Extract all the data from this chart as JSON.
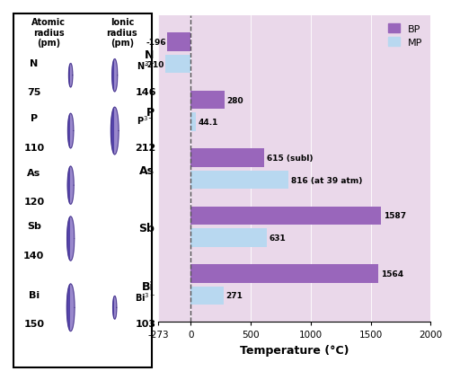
{
  "elements": [
    "N",
    "P",
    "As",
    "Sb",
    "Bi"
  ],
  "bp": [
    -196,
    280,
    615,
    1587,
    1564
  ],
  "mp": [
    -210,
    44.1,
    816,
    631,
    271
  ],
  "bp_labels": [
    "-196",
    "280",
    "615 (subl)",
    "1587",
    "1564"
  ],
  "mp_labels": [
    "-210",
    "44.1",
    "816 (at 39 atm)",
    "631",
    "271"
  ],
  "bp_color": "#9966bb",
  "mp_color": "#b8d8f0",
  "bg_color": "#ead8ea",
  "xlabel": "Temperature (°C)",
  "xlim": [
    -273,
    2000
  ],
  "xticks": [
    -273,
    0,
    500,
    1000,
    1500,
    2000
  ],
  "left_panel_bg": "#ffffff",
  "atomic_radius": [
    75,
    110,
    120,
    140,
    150
  ],
  "ionic_radii": [
    146,
    212,
    null,
    null,
    103
  ],
  "ionic_label_top": [
    "N$^{3-}$",
    "P$^{3-}$",
    null,
    null,
    "Bi$^{3+}$"
  ],
  "ionic_label_bot": [
    "146",
    "212",
    null,
    null,
    "103"
  ],
  "title_atomic": "Atomic\nradius\n(pm)",
  "title_ionic": "Ionic\nradius\n(pm)",
  "sphere_dark": "#5544aa",
  "sphere_light": "#9988cc",
  "sphere_outline": "#443388"
}
